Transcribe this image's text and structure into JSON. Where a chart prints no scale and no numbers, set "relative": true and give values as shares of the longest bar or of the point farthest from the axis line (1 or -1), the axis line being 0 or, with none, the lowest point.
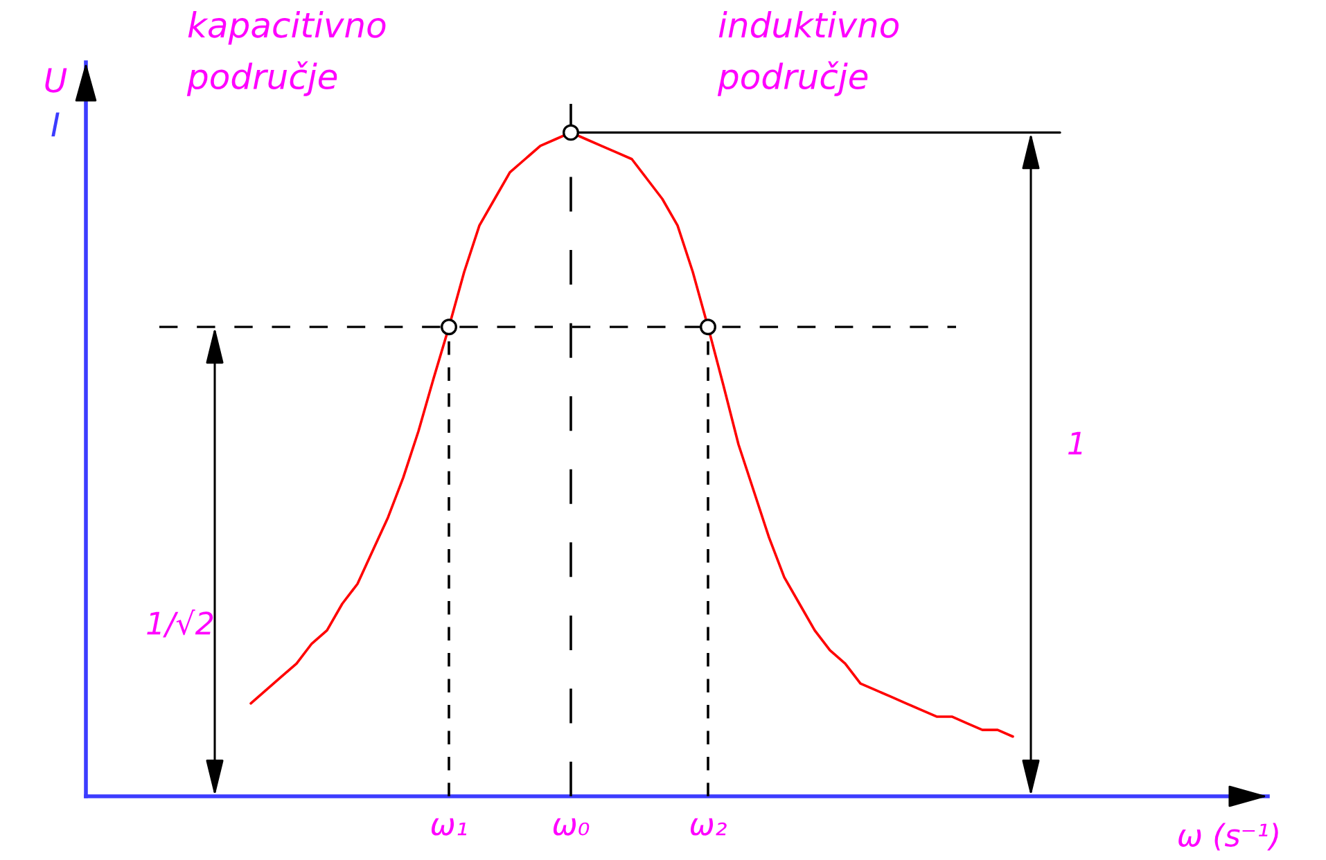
{
  "chart_data": {
    "type": "line",
    "relative": true,
    "tick_labels": "x",
    "categories": [
      null,
      null,
      null,
      null,
      null,
      null,
      null,
      null,
      null,
      null,
      null,
      null,
      null,
      "ω₁",
      null,
      null,
      null,
      null,
      null,
      null,
      null,
      "ω₀",
      null,
      null,
      null,
      null,
      null,
      null,
      null,
      null,
      "ω₂",
      null,
      null,
      null,
      null,
      null,
      null,
      null,
      null,
      null,
      null,
      null,
      null,
      null,
      null,
      null,
      null,
      null,
      null,
      null,
      null
    ],
    "series": [
      {
        "color": "#ff0000",
        "line_style": "solid",
        "values": [
          0.14,
          0.16,
          0.18,
          0.2,
          0.23,
          0.25,
          0.29,
          0.32,
          0.37,
          0.42,
          0.48,
          0.55,
          0.63,
          0.7071,
          0.79,
          0.86,
          0.9,
          0.94,
          0.96,
          0.98,
          0.99,
          1,
          0.99,
          0.98,
          0.97,
          0.96,
          0.93,
          0.9,
          0.86,
          0.79,
          0.7071,
          0.62,
          0.53,
          0.46,
          0.39,
          0.33,
          0.29,
          0.25,
          0.22,
          0.2,
          0.17,
          0.16,
          0.15,
          0.14,
          0.13,
          0.12,
          0.12,
          0.11,
          0.1,
          0.1,
          0.09
        ]
      },
      {
        "type": "scatter",
        "color": "#000000",
        "marker": "circle",
        "x": [
          "ω₁",
          "ω₀",
          "ω₂"
        ],
        "values": [
          0.7071,
          1,
          0.7071
        ]
      }
    ],
    "ref_lines": [
      {
        "axis": "x",
        "value": "ω₁",
        "color": "#000000",
        "line_style": "dashed"
      },
      {
        "axis": "x",
        "value": "ω₀",
        "color": "#000000",
        "line_style": "dashed"
      },
      {
        "axis": "x",
        "value": "ω₂",
        "color": "#000000",
        "line_style": "dashed"
      },
      {
        "axis": "y",
        "value": 1,
        "color": "#000000",
        "line_style": "solid"
      },
      {
        "axis": "y",
        "value": 0.7071,
        "color": "#000000",
        "line_style": "dashed"
      }
    ],
    "annotations": [
      "kapacitivno\npodručje",
      "induktivno\npodručje",
      "1",
      "1/√2",
      "ω (s⁻¹)",
      "U\nI"
    ]
  }
}
